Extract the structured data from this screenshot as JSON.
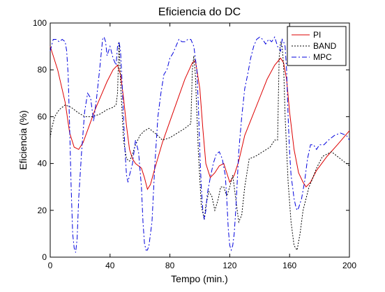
{
  "chart_data": {
    "type": "line",
    "title": "Eficiencia do DC",
    "xlabel": "Tempo (min.)",
    "ylabel": "Eficiencia (%)",
    "xlim": [
      0,
      200
    ],
    "ylim": [
      0,
      100
    ],
    "xticks": [
      0,
      40,
      80,
      120,
      160,
      200
    ],
    "yticks": [
      0,
      20,
      40,
      60,
      80,
      100
    ],
    "grid": false,
    "legend_position": "top-right",
    "series": [
      {
        "name": "PI",
        "color": "#dd0000",
        "style": "solid",
        "x": [
          0,
          5,
          10,
          13,
          16,
          19,
          22,
          26,
          30,
          34,
          38,
          42,
          45,
          47,
          49,
          51,
          53,
          55,
          57,
          59,
          61,
          63,
          65,
          67,
          70,
          75,
          80,
          85,
          90,
          95,
          97,
          100,
          102,
          104,
          107,
          110,
          113,
          116,
          118,
          120,
          123,
          126,
          130,
          135,
          140,
          145,
          150,
          154,
          156,
          158,
          160,
          163,
          166,
          169,
          171,
          174,
          178,
          185,
          192,
          200
        ],
        "y": [
          90,
          80,
          66,
          53,
          47,
          46,
          49,
          56,
          63,
          69,
          75,
          80,
          82,
          78,
          68,
          56,
          46,
          42,
          40,
          39,
          38,
          34,
          29,
          31,
          38,
          49,
          58,
          67,
          76,
          83,
          84,
          72,
          55,
          40,
          34,
          36,
          39,
          40,
          36,
          32,
          35,
          41,
          52,
          60,
          68,
          76,
          82,
          85,
          83,
          76,
          62,
          46,
          36,
          32,
          30,
          32,
          37,
          43,
          48,
          54
        ]
      },
      {
        "name": "BAND",
        "color": "#000000",
        "style": "dotted",
        "x": [
          0,
          1,
          3,
          6,
          10,
          14,
          18,
          23,
          28,
          33,
          38,
          42,
          44,
          45,
          46,
          47,
          49,
          51,
          53,
          55,
          57,
          60,
          63,
          66,
          70,
          75,
          80,
          85,
          90,
          94,
          95,
          96,
          97,
          99,
          101,
          103,
          104,
          106,
          108,
          110,
          112,
          114,
          116,
          118,
          120,
          122,
          124,
          126,
          128,
          130,
          133,
          137,
          142,
          147,
          150,
          152,
          153,
          154,
          155,
          156,
          157,
          159,
          161,
          163,
          165,
          167,
          169,
          171,
          173,
          175,
          178,
          182,
          188,
          194,
          200
        ],
        "y": [
          51,
          55,
          60,
          63,
          65,
          64,
          62,
          60,
          60,
          61,
          63,
          64,
          65,
          70,
          92,
          75,
          50,
          42,
          41,
          44,
          48,
          52,
          54,
          55,
          53,
          50,
          51,
          53,
          55,
          57,
          80,
          86,
          78,
          45,
          22,
          16,
          22,
          28,
          26,
          20,
          24,
          30,
          30,
          26,
          30,
          35,
          25,
          15,
          18,
          30,
          42,
          43,
          45,
          47,
          50,
          50,
          85,
          92,
          90,
          82,
          60,
          32,
          15,
          5,
          3,
          10,
          20,
          25,
          30,
          33,
          38,
          43,
          45,
          42,
          39
        ]
      },
      {
        "name": "MPC",
        "color": "#0000dd",
        "style": "dashdot",
        "x": [
          0,
          2,
          4,
          6,
          8,
          10,
          11,
          12,
          13,
          14,
          15,
          16,
          17,
          18,
          19,
          21,
          23,
          25,
          27,
          29,
          31,
          33,
          35,
          36,
          37,
          38,
          40,
          42,
          44,
          45,
          46,
          47,
          48,
          49,
          50,
          51,
          52,
          53,
          55,
          57,
          59,
          61,
          62,
          63,
          64,
          65,
          66,
          68,
          70,
          72,
          74,
          76,
          78,
          80,
          82,
          84,
          86,
          88,
          90,
          92,
          94,
          96,
          97,
          98,
          99,
          100,
          101,
          102,
          103,
          104,
          105,
          107,
          109,
          111,
          113,
          115,
          117,
          118,
          119,
          120,
          121,
          122,
          123,
          124,
          125,
          126,
          128,
          130,
          132,
          134,
          136,
          138,
          140,
          142,
          144,
          146,
          148,
          150,
          152,
          154,
          155,
          156,
          157,
          158,
          159,
          160,
          161,
          162,
          163,
          164,
          165,
          166,
          168,
          170,
          172,
          174,
          176,
          178,
          180,
          183,
          186,
          190,
          194,
          198,
          200
        ],
        "y": [
          88,
          93,
          93,
          92,
          93,
          92,
          88,
          78,
          55,
          30,
          10,
          4,
          2,
          8,
          25,
          45,
          62,
          70,
          68,
          58,
          68,
          80,
          93,
          94,
          92,
          86,
          90,
          85,
          82,
          90,
          92,
          88,
          75,
          60,
          45,
          35,
          32,
          35,
          40,
          50,
          45,
          30,
          15,
          6,
          3,
          3,
          5,
          15,
          40,
          60,
          70,
          78,
          80,
          85,
          87,
          90,
          93,
          92,
          92,
          93,
          93,
          90,
          85,
          80,
          65,
          45,
          30,
          20,
          16,
          20,
          27,
          34,
          40,
          44,
          45,
          42,
          35,
          25,
          12,
          5,
          3,
          5,
          10,
          20,
          32,
          45,
          60,
          72,
          78,
          85,
          90,
          93,
          94,
          93,
          91,
          93,
          92,
          94,
          90,
          88,
          93,
          92,
          90,
          80,
          60,
          45,
          35,
          30,
          25,
          22,
          20,
          21,
          25,
          32,
          42,
          48,
          48,
          46,
          48,
          48,
          50,
          52,
          53,
          52,
          50
        ]
      }
    ]
  }
}
